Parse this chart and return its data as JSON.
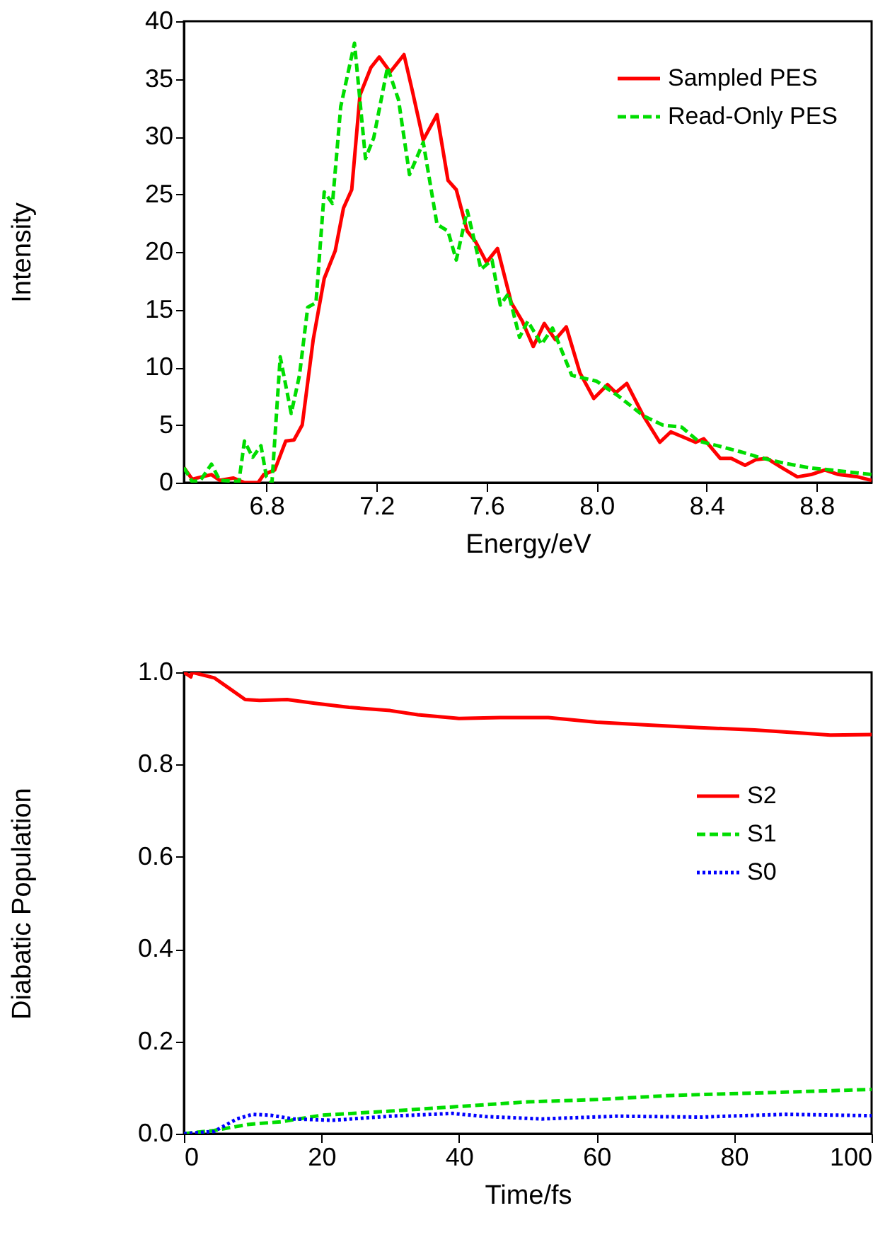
{
  "chart_data": [
    {
      "type": "line",
      "xlabel": "Energy/eV",
      "ylabel": "Intensity",
      "xlim": [
        6.5,
        9.0
      ],
      "ylim": [
        0,
        40
      ],
      "xticks": [
        6.8,
        7.2,
        7.6,
        {
          "value": 8.0,
          "label": "8.0"
        },
        8.4,
        8.8
      ],
      "yticks": [
        0,
        5,
        10,
        15,
        20,
        25,
        30,
        35,
        40
      ],
      "grid": false,
      "legend": "top right",
      "marker": "none",
      "series": [
        {
          "name": "Sampled PES",
          "color": "#ff0000",
          "line_style": "solid",
          "x": [
            6.5,
            6.53,
            6.6,
            6.63,
            6.68,
            6.72,
            6.77,
            6.79,
            6.83,
            6.87,
            6.9,
            6.93,
            6.97,
            7.01,
            7.05,
            7.08,
            7.11,
            7.14,
            7.18,
            7.21,
            7.25,
            7.3,
            7.33,
            7.37,
            7.42,
            7.46,
            7.49,
            7.53,
            7.56,
            7.6,
            7.64,
            7.69,
            7.73,
            7.77,
            7.81,
            7.85,
            7.89,
            7.94,
            7.99,
            8.04,
            8.07,
            8.11,
            8.17,
            8.23,
            8.27,
            8.31,
            8.36,
            8.39,
            8.45,
            8.49,
            8.54,
            8.58,
            8.62,
            8.68,
            8.73,
            8.78,
            8.83,
            8.88,
            8.95,
            9.0
          ],
          "values": [
            1.3,
            0.3,
            0.7,
            0.2,
            0.4,
            0,
            0,
            0.7,
            1.1,
            3.6,
            3.7,
            5.0,
            12.4,
            17.7,
            20.1,
            23.8,
            25.4,
            33.6,
            36.0,
            36.9,
            35.6,
            37.1,
            34.0,
            29.7,
            31.9,
            26.2,
            25.4,
            21.8,
            20.9,
            19.1,
            20.3,
            15.6,
            14.0,
            11.8,
            13.8,
            12.4,
            13.5,
            9.5,
            7.3,
            8.5,
            7.8,
            8.6,
            5.8,
            3.5,
            4.4,
            4.0,
            3.5,
            3.8,
            2.1,
            2.1,
            1.5,
            2.0,
            2.1,
            1.2,
            0.5,
            0.7,
            1.1,
            0.7,
            0.5,
            0.2
          ]
        },
        {
          "name": "Read-Only PES",
          "color": "#00dd00",
          "line_style": "dashed",
          "x": [
            6.5,
            6.53,
            6.56,
            6.6,
            6.63,
            6.7,
            6.72,
            6.75,
            6.78,
            6.8,
            6.82,
            6.85,
            6.89,
            6.92,
            6.95,
            6.98,
            7.01,
            7.04,
            7.07,
            7.12,
            7.16,
            7.19,
            7.24,
            7.28,
            7.32,
            7.37,
            7.42,
            7.46,
            7.49,
            7.53,
            7.58,
            7.62,
            7.65,
            7.68,
            7.72,
            7.75,
            7.8,
            7.84,
            7.91,
            8.0,
            8.08,
            8.17,
            8.24,
            8.31,
            8.37,
            8.44,
            8.52,
            8.59,
            8.68,
            8.77,
            8.85,
            9.0
          ],
          "values": [
            1.3,
            0.1,
            0.2,
            1.6,
            0.2,
            0.1,
            3.6,
            2.2,
            3.2,
            0.5,
            0,
            10.9,
            6.0,
            9.3,
            15.2,
            15.6,
            25.2,
            24.2,
            32.6,
            38.1,
            28.1,
            29.9,
            36.0,
            33.2,
            26.7,
            29.5,
            22.4,
            21.8,
            19.3,
            23.6,
            18.5,
            19.3,
            15.4,
            16.4,
            12.6,
            14.0,
            12.0,
            13.4,
            9.3,
            8.8,
            7.5,
            5.8,
            5.0,
            4.8,
            3.6,
            3.2,
            2.7,
            2.2,
            1.7,
            1.3,
            1.1,
            0.7
          ]
        }
      ]
    },
    {
      "type": "line",
      "xlabel": "Time/fs",
      "ylabel": "Diabatic Population",
      "xlim": [
        0,
        100
      ],
      "ylim": [
        0,
        1.0
      ],
      "xticks": [
        0,
        20,
        40,
        60,
        80,
        100
      ],
      "yticks": [
        {
          "value": 0,
          "label": "0.0"
        },
        0.2,
        0.4,
        0.6,
        0.8,
        {
          "value": 1.0,
          "label": "1.0"
        }
      ],
      "grid": false,
      "legend": "right",
      "marker": "none",
      "series": [
        {
          "name": "S2",
          "color": "#ff0000",
          "line_style": "solid",
          "x": [
            0,
            1,
            1.2,
            4.4,
            6.8,
            8.9,
            11,
            15,
            19,
            24,
            30,
            34,
            40,
            46,
            53,
            60,
            67,
            75,
            83,
            90,
            94,
            100
          ],
          "values": [
            1.0,
            0.99,
            1.0,
            0.988,
            0.963,
            0.941,
            0.939,
            0.941,
            0.933,
            0.924,
            0.917,
            0.908,
            0.9,
            0.902,
            0.902,
            0.892,
            0.886,
            0.88,
            0.875,
            0.868,
            0.864,
            0.865
          ]
        },
        {
          "name": "S1",
          "color": "#00dd00",
          "line_style": "dashed",
          "x": [
            0,
            4.4,
            9.3,
            14.2,
            20,
            30,
            40,
            50,
            60,
            71,
            83,
            100
          ],
          "values": [
            0,
            0.007,
            0.02,
            0.026,
            0.04,
            0.049,
            0.059,
            0.069,
            0.074,
            0.083,
            0.088,
            0.096
          ]
        },
        {
          "name": "S0",
          "color": "#0000ff",
          "line_style": "dotted",
          "x": [
            0,
            4.4,
            7.7,
            10,
            12.6,
            15.9,
            21.6,
            30,
            39,
            44,
            52,
            63,
            75,
            87.5,
            100
          ],
          "values": [
            0,
            0.005,
            0.032,
            0.042,
            0.04,
            0.032,
            0.029,
            0.038,
            0.044,
            0.037,
            0.032,
            0.038,
            0.036,
            0.042,
            0.039
          ]
        }
      ]
    }
  ]
}
